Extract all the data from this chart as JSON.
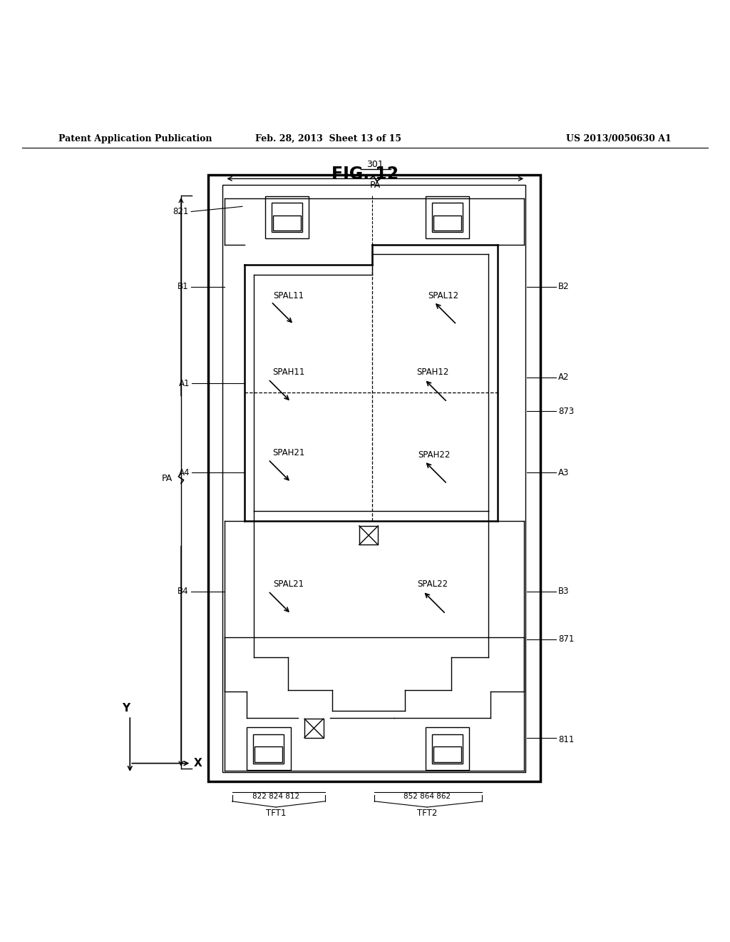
{
  "title": "FIG. 12",
  "header_left": "Patent Application Publication",
  "header_mid": "Feb. 28, 2013  Sheet 13 of 15",
  "header_right": "US 2013/0050630 A1",
  "bg_color": "#ffffff",
  "line_color": "#000000",
  "labels": {
    "B1": "B1",
    "B2": "B2",
    "B3": "B3",
    "B4": "B4",
    "A1": "A1",
    "A2": "A2",
    "A3": "A3",
    "A4": "A4",
    "ref821": "821",
    "ref873": "873",
    "ref871": "871",
    "ref811": "811",
    "SPAL11": "SPAL11",
    "SPAL12": "SPAL12",
    "SPAH11": "SPAH11",
    "SPAH12": "SPAH12",
    "SPAH21": "SPAH21",
    "SPAH22": "SPAH22",
    "SPAL21": "SPAL21",
    "SPAL22": "SPAL22",
    "TFT1": "TFT1",
    "TFT2": "TFT2",
    "tft1_nums": "822 824 812",
    "tft2_nums": "852 864 862",
    "PA_label": "PA",
    "label_301": "301"
  }
}
